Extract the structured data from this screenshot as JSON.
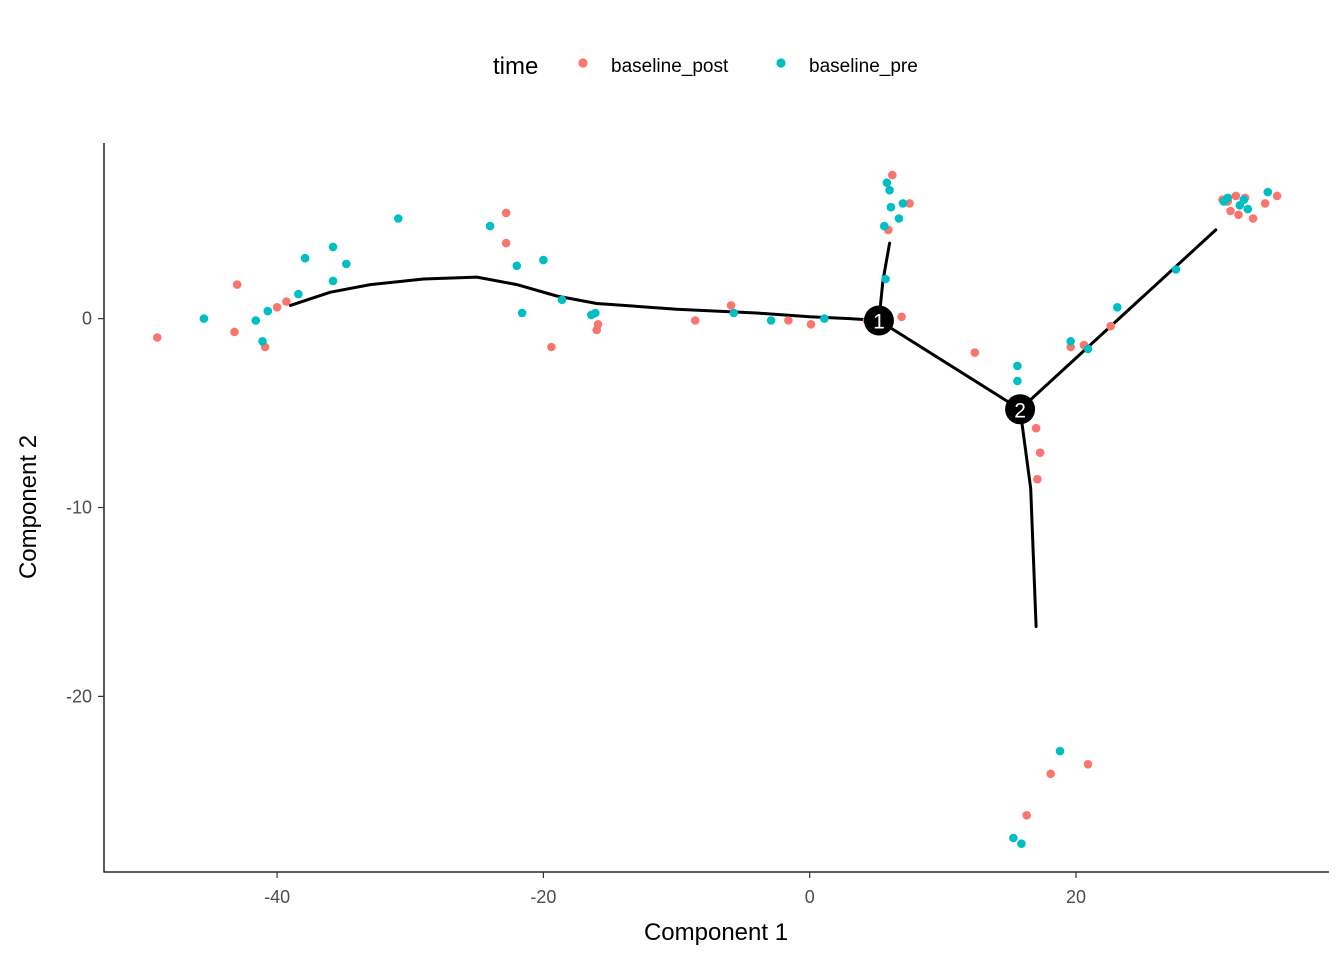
{
  "chart_data": {
    "type": "scatter",
    "xlabel": "Component 1",
    "ylabel": "Component 2",
    "xlim": [
      -53,
      39
    ],
    "ylim": [
      -29.3,
      9.3
    ],
    "x_ticks": [
      -40,
      -20,
      0,
      20
    ],
    "x_tick_labels": [
      "-40",
      "-20",
      "0",
      "20"
    ],
    "y_ticks": [
      0,
      -10,
      -20
    ],
    "y_tick_labels": [
      "0",
      "-10",
      "-20"
    ],
    "grid": false,
    "legend": {
      "title": "time",
      "position": "top",
      "entries": [
        {
          "label": "baseline_post",
          "color": "#F8766D"
        },
        {
          "label": "baseline_pre",
          "color": "#00BFC4"
        }
      ]
    },
    "series": [
      {
        "name": "baseline_post",
        "color": "#F8766D",
        "points": [
          [
            -49,
            -1.0
          ],
          [
            -43.2,
            -0.7
          ],
          [
            -43.0,
            1.8
          ],
          [
            -40.9,
            -1.5
          ],
          [
            -40,
            0.6
          ],
          [
            -39.3,
            0.9
          ],
          [
            -22.8,
            5.6
          ],
          [
            -22.8,
            4.0
          ],
          [
            -19.4,
            -1.5
          ],
          [
            -15.9,
            -0.3
          ],
          [
            -16,
            -0.6
          ],
          [
            -8.6,
            -0.1
          ],
          [
            -5.9,
            0.7
          ],
          [
            -1.6,
            -0.1
          ],
          [
            0.1,
            -0.3
          ],
          [
            4.3,
            -0.1
          ],
          [
            6.2,
            7.6
          ],
          [
            5.9,
            4.7
          ],
          [
            7.5,
            6.1
          ],
          [
            6.9,
            0.1
          ],
          [
            12.4,
            -1.8
          ],
          [
            17,
            -5.8
          ],
          [
            17.3,
            -7.1
          ],
          [
            17.1,
            -8.5
          ],
          [
            19.6,
            -1.5
          ],
          [
            20.6,
            -1.4
          ],
          [
            22.6,
            -0.4
          ],
          [
            31,
            6.3
          ],
          [
            31.4,
            6.2
          ],
          [
            32,
            6.5
          ],
          [
            31.6,
            5.7
          ],
          [
            32.2,
            5.5
          ],
          [
            32.7,
            6.4
          ],
          [
            33.3,
            5.3
          ],
          [
            34.2,
            6.1
          ],
          [
            35.1,
            6.5
          ],
          [
            16.3,
            -26.3
          ],
          [
            18.1,
            -24.1
          ],
          [
            20.9,
            -23.6
          ]
        ]
      },
      {
        "name": "baseline_pre",
        "color": "#00BFC4",
        "points": [
          [
            -45.5,
            0
          ],
          [
            -41.6,
            -0.1
          ],
          [
            -41.1,
            -1.2
          ],
          [
            -40.7,
            0.4
          ],
          [
            -38.4,
            1.3
          ],
          [
            -37.9,
            3.2
          ],
          [
            -35.8,
            2.0
          ],
          [
            -35.8,
            3.8
          ],
          [
            -34.8,
            2.9
          ],
          [
            -30.9,
            5.3
          ],
          [
            -24,
            4.9
          ],
          [
            -22,
            2.8
          ],
          [
            -21.6,
            0.3
          ],
          [
            -20,
            3.1
          ],
          [
            -18.6,
            1.0
          ],
          [
            -16.1,
            0.3
          ],
          [
            -16.4,
            0.2
          ],
          [
            -5.7,
            0.3
          ],
          [
            -2.9,
            -0.1
          ],
          [
            1.1,
            0
          ],
          [
            5.6,
            4.9
          ],
          [
            5.7,
            2.1
          ],
          [
            5.8,
            7.2
          ],
          [
            6.0,
            6.8
          ],
          [
            6.1,
            5.9
          ],
          [
            6.7,
            5.3
          ],
          [
            7,
            6.1
          ],
          [
            15.6,
            -2.5
          ],
          [
            15.6,
            -3.3
          ],
          [
            19.6,
            -1.2
          ],
          [
            20.9,
            -1.6
          ],
          [
            23.1,
            0.6
          ],
          [
            27.5,
            2.6
          ],
          [
            31.1,
            6.2
          ],
          [
            31.4,
            6.4
          ],
          [
            32.3,
            6.0
          ],
          [
            32.6,
            6.3
          ],
          [
            32.9,
            5.8
          ],
          [
            34.4,
            6.7
          ],
          [
            15.3,
            -27.5
          ],
          [
            15.9,
            -27.8
          ],
          [
            18.8,
            -22.9
          ]
        ]
      }
    ],
    "trajectory": [
      [
        [
          -39,
          0.7
        ],
        [
          -36,
          1.4
        ],
        [
          -33,
          1.8
        ],
        [
          -29,
          2.1
        ],
        [
          -25,
          2.2
        ],
        [
          -22,
          1.8
        ],
        [
          -19,
          1.2
        ],
        [
          -16,
          0.8
        ],
        [
          -10,
          0.5
        ],
        [
          -4,
          0.3
        ],
        [
          0,
          0.1
        ],
        [
          3,
          0.0
        ],
        [
          5.2,
          -0.1
        ]
      ],
      [
        [
          5.2,
          -0.1
        ],
        [
          5.5,
          2.0
        ],
        [
          6.0,
          4.0
        ]
      ],
      [
        [
          5.2,
          -0.1
        ],
        [
          15.8,
          -4.8
        ]
      ],
      [
        [
          15.8,
          -4.8
        ],
        [
          30.5,
          4.7
        ]
      ],
      [
        [
          15.8,
          -4.8
        ],
        [
          16.6,
          -9.0
        ],
        [
          17.0,
          -16.3
        ]
      ]
    ],
    "branch_points": [
      {
        "label": "1",
        "x": 5.2,
        "y": -0.1
      },
      {
        "label": "2",
        "x": 15.8,
        "y": -4.8
      }
    ]
  }
}
